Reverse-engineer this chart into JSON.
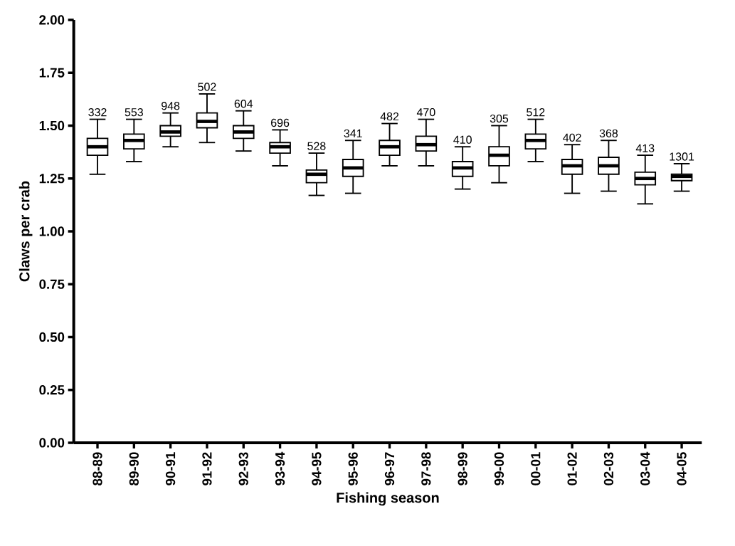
{
  "chart_data": {
    "type": "box",
    "xlabel": "Fishing season",
    "ylabel": "Claws per crab",
    "color": "#000000",
    "categories": [
      "88-89",
      "89-90",
      "90-91",
      "91-92",
      "92-93",
      "93-94",
      "94-95",
      "95-96",
      "96-97",
      "97-98",
      "98-99",
      "99-00",
      "00-01",
      "01-02",
      "02-03",
      "03-04",
      "04-05"
    ],
    "boxes": [
      {
        "low": 1.27,
        "q1": 1.36,
        "median": 1.4,
        "q3": 1.44,
        "high": 1.53
      },
      {
        "low": 1.33,
        "q1": 1.39,
        "median": 1.43,
        "q3": 1.46,
        "high": 1.53
      },
      {
        "low": 1.4,
        "q1": 1.45,
        "median": 1.47,
        "q3": 1.5,
        "high": 1.56
      },
      {
        "low": 1.42,
        "q1": 1.49,
        "median": 1.52,
        "q3": 1.56,
        "high": 1.65
      },
      {
        "low": 1.38,
        "q1": 1.44,
        "median": 1.47,
        "q3": 1.5,
        "high": 1.57
      },
      {
        "low": 1.31,
        "q1": 1.37,
        "median": 1.4,
        "q3": 1.42,
        "high": 1.48
      },
      {
        "low": 1.17,
        "q1": 1.23,
        "median": 1.27,
        "q3": 1.29,
        "high": 1.37
      },
      {
        "low": 1.18,
        "q1": 1.26,
        "median": 1.3,
        "q3": 1.34,
        "high": 1.43
      },
      {
        "low": 1.31,
        "q1": 1.36,
        "median": 1.4,
        "q3": 1.43,
        "high": 1.51
      },
      {
        "low": 1.31,
        "q1": 1.38,
        "median": 1.41,
        "q3": 1.45,
        "high": 1.53
      },
      {
        "low": 1.2,
        "q1": 1.26,
        "median": 1.3,
        "q3": 1.33,
        "high": 1.4
      },
      {
        "low": 1.23,
        "q1": 1.31,
        "median": 1.36,
        "q3": 1.4,
        "high": 1.5
      },
      {
        "low": 1.33,
        "q1": 1.39,
        "median": 1.43,
        "q3": 1.46,
        "high": 1.53
      },
      {
        "low": 1.18,
        "q1": 1.27,
        "median": 1.31,
        "q3": 1.34,
        "high": 1.41
      },
      {
        "low": 1.19,
        "q1": 1.27,
        "median": 1.31,
        "q3": 1.35,
        "high": 1.43
      },
      {
        "low": 1.13,
        "q1": 1.22,
        "median": 1.25,
        "q3": 1.28,
        "high": 1.36
      },
      {
        "low": 1.19,
        "q1": 1.24,
        "median": 1.26,
        "q3": 1.27,
        "high": 1.32
      }
    ],
    "ylim": [
      0,
      2
    ],
    "yticks": [
      {
        "value": 0,
        "label": "0.00"
      },
      {
        "value": 0.25,
        "label": "0.25"
      },
      {
        "value": 0.5,
        "label": "0.50"
      },
      {
        "value": 0.75,
        "label": "0.75"
      },
      {
        "value": 1,
        "label": "1.00"
      },
      {
        "value": 1.25,
        "label": "1.25"
      },
      {
        "value": 1.5,
        "label": "1.50"
      },
      {
        "value": 1.75,
        "label": "1.75"
      },
      {
        "value": 2,
        "label": "2.00"
      }
    ],
    "annotations": [
      "332",
      "553",
      "948",
      "502",
      "604",
      "696",
      "528",
      "341",
      "482",
      "470",
      "410",
      "305",
      "512",
      "402",
      "368",
      "413",
      "1301"
    ]
  }
}
